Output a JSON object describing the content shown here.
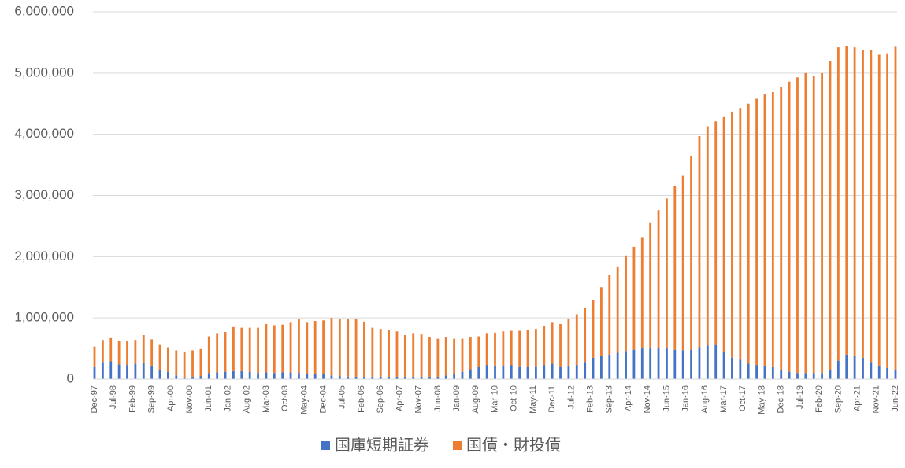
{
  "chart_data": {
    "type": "stacked-bar",
    "xticks": [
      "Dec-97",
      "Jul-98",
      "Feb-99",
      "Sep-99",
      "Apr-00",
      "Nov-00",
      "Jun-01",
      "Jan-02",
      "Aug-02",
      "Mar-03",
      "Oct-03",
      "May-04",
      "Dec-04",
      "Jul-05",
      "Feb-06",
      "Sep-06",
      "Apr-07",
      "Nov-07",
      "Jun-08",
      "Jan-09",
      "Aug-09",
      "Mar-10",
      "Oct-10",
      "May-11",
      "Dec-11",
      "Jul-12",
      "Feb-13",
      "Sep-13",
      "Apr-14",
      "Nov-14",
      "Jun-15",
      "Jan-16",
      "Aug-16",
      "Mar-17",
      "Oct-17",
      "May-18",
      "Dec-18",
      "Jul-19",
      "Feb-20",
      "Sep-20",
      "Apr-21",
      "Nov-21",
      "Jun-22"
    ],
    "ylim": [
      0,
      6000000
    ],
    "yticks": [
      0,
      {
        "value": 1000000,
        "label": "1,000,000"
      },
      {
        "value": 2000000,
        "label": "2,000,000"
      },
      {
        "value": 3000000,
        "label": "3,000,000"
      },
      {
        "value": 4000000,
        "label": "4,000,000"
      },
      {
        "value": 5000000,
        "label": "5,000,000"
      },
      {
        "value": 6000000,
        "label": "6,000,000"
      }
    ],
    "grid": true,
    "legend": "bottom",
    "series": [
      {
        "name": "国庫短期証券",
        "color": "#4472c4",
        "values": [
          200000,
          280000,
          290000,
          240000,
          230000,
          250000,
          270000,
          220000,
          150000,
          120000,
          60000,
          30000,
          40000,
          50000,
          100000,
          110000,
          120000,
          130000,
          130000,
          120000,
          100000,
          110000,
          100000,
          110000,
          110000,
          100000,
          90000,
          90000,
          80000,
          60000,
          50000,
          40000,
          40000,
          40000,
          40000,
          40000,
          40000,
          40000,
          40000,
          40000,
          40000,
          40000,
          40000,
          60000,
          80000,
          120000,
          160000,
          200000,
          230000,
          220000,
          220000,
          230000,
          210000,
          200000,
          210000,
          230000,
          250000,
          200000,
          220000,
          230000,
          280000,
          350000,
          380000,
          400000,
          430000,
          460000,
          480000,
          500000,
          500000,
          500000,
          500000,
          480000,
          470000,
          480000,
          520000,
          550000,
          570000,
          450000,
          350000,
          320000,
          250000,
          230000,
          220000,
          200000,
          150000,
          120000,
          100000,
          100000,
          100000,
          100000,
          150000,
          300000,
          400000,
          380000,
          350000,
          280000,
          220000,
          180000,
          150000
        ]
      },
      {
        "name": "国債・財投債",
        "color": "#ed7d31",
        "values": [
          330000,
          360000,
          380000,
          390000,
          390000,
          390000,
          450000,
          430000,
          420000,
          400000,
          410000,
          410000,
          430000,
          440000,
          600000,
          630000,
          650000,
          720000,
          710000,
          720000,
          740000,
          790000,
          780000,
          780000,
          810000,
          880000,
          830000,
          860000,
          880000,
          940000,
          940000,
          950000,
          950000,
          900000,
          800000,
          780000,
          760000,
          740000,
          680000,
          700000,
          690000,
          650000,
          620000,
          630000,
          580000,
          540000,
          520000,
          500000,
          510000,
          540000,
          560000,
          560000,
          580000,
          600000,
          610000,
          630000,
          670000,
          700000,
          760000,
          830000,
          880000,
          940000,
          1120000,
          1300000,
          1410000,
          1560000,
          1680000,
          1820000,
          2060000,
          2260000,
          2450000,
          2670000,
          2850000,
          3170000,
          3450000,
          3580000,
          3640000,
          3830000,
          4020000,
          4110000,
          4250000,
          4350000,
          4430000,
          4490000,
          4630000,
          4740000,
          4830000,
          4900000,
          4850000,
          4900000,
          5050000,
          5120000,
          5040000,
          5040000,
          5030000,
          5090000,
          5080000,
          5130000,
          5280000
        ]
      }
    ]
  }
}
